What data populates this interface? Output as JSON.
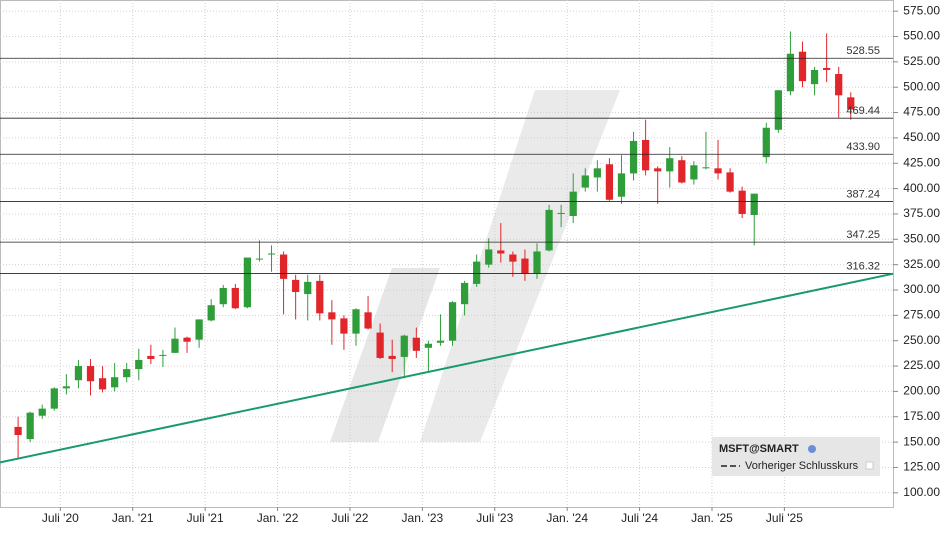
{
  "chart_data": {
    "type": "candlestick",
    "x": [
      "2020-03",
      "2020-04",
      "2020-05",
      "2020-06",
      "2020-07",
      "2020-08",
      "2020-09",
      "2020-10",
      "2020-11",
      "2020-12",
      "2021-01",
      "2021-02",
      "2021-03",
      "2021-04",
      "2021-05",
      "2021-06",
      "2021-07",
      "2021-08",
      "2021-09",
      "2021-10",
      "2021-11",
      "2021-12",
      "2022-01",
      "2022-02",
      "2022-03",
      "2022-04",
      "2022-05",
      "2022-06",
      "2022-07",
      "2022-08",
      "2022-09",
      "2022-10",
      "2022-11",
      "2022-12",
      "2023-01",
      "2023-02",
      "2023-03",
      "2023-04",
      "2023-05",
      "2023-06",
      "2023-07",
      "2023-08",
      "2023-09",
      "2023-10",
      "2023-11",
      "2023-12",
      "2024-01",
      "2024-02",
      "2024-03",
      "2024-04",
      "2024-05",
      "2024-06",
      "2024-07",
      "2024-08",
      "2024-09",
      "2024-10",
      "2024-11",
      "2024-12",
      "2025-01",
      "2025-02",
      "2025-03",
      "2025-04",
      "2025-05",
      "2025-06",
      "2025-07",
      "2025-08",
      "2025-09",
      "2025-10",
      "2025-11",
      "2025-12"
    ],
    "open": [
      165,
      153,
      176,
      183,
      203,
      211,
      225,
      213,
      204,
      214,
      222,
      235,
      235,
      238,
      253,
      251,
      270,
      286,
      302,
      283,
      331,
      335,
      335,
      310,
      296,
      309,
      278,
      272,
      257,
      278,
      258,
      235,
      234,
      253,
      243,
      248,
      250,
      286,
      306,
      325,
      339,
      335,
      331,
      316,
      339,
      376,
      373,
      401,
      411,
      424,
      392,
      415,
      448,
      420,
      417,
      428,
      409,
      421,
      420,
      416,
      398,
      374,
      431,
      458,
      496,
      535,
      503,
      519,
      513,
      490
    ],
    "high": [
      175,
      180,
      187,
      204,
      217,
      231,
      232,
      225,
      228,
      228,
      242,
      246,
      241,
      263,
      254,
      271,
      291,
      305,
      306,
      332,
      349,
      344,
      338,
      315,
      315,
      315,
      290,
      275,
      282,
      294,
      267,
      251,
      256,
      263,
      250,
      276,
      289,
      309,
      335,
      351,
      366,
      338,
      340,
      346,
      384,
      384,
      415,
      420,
      428,
      430,
      433,
      456,
      468,
      422,
      441,
      432,
      427,
      456,
      448,
      420,
      402,
      395,
      465,
      497,
      555,
      545,
      520,
      553,
      520,
      495
    ],
    "low": [
      133,
      150,
      173,
      181,
      197,
      203,
      196,
      199,
      200,
      209,
      211,
      227,
      224,
      238,
      238,
      243,
      269,
      283,
      281,
      282,
      328,
      318,
      276,
      271,
      270,
      270,
      246,
      241,
      245,
      261,
      232,
      219,
      213,
      233,
      220,
      245,
      245,
      275,
      303,
      322,
      327,
      313,
      309,
      311,
      338,
      362,
      366,
      397,
      397,
      388,
      385,
      408,
      413,
      385,
      401,
      405,
      404,
      419,
      409,
      396,
      371,
      344,
      425,
      455,
      492,
      500,
      492,
      505,
      470,
      468
    ],
    "close": [
      157,
      179,
      183,
      203,
      205,
      225,
      210,
      202,
      214,
      222,
      231,
      232,
      236,
      252,
      249,
      271,
      285,
      302,
      282,
      332,
      331,
      336,
      311,
      298,
      308,
      277,
      271,
      257,
      281,
      262,
      233,
      232,
      255,
      240,
      247,
      250,
      288,
      307,
      328,
      340,
      336,
      328,
      316,
      338,
      379,
      376,
      397,
      413,
      420,
      389,
      415,
      447,
      418,
      417,
      430,
      406,
      423,
      421,
      415,
      397,
      375,
      395,
      460,
      497,
      533,
      506,
      517,
      517,
      492,
      478
    ],
    "up_color": "#2f9e3a",
    "down_color": "#e0262a",
    "xlim": [
      "2020-02",
      "2026-04"
    ],
    "xticks": [
      {
        "value": "2020-07",
        "label": "Juli '20"
      },
      {
        "value": "2021-01",
        "label": "Jan. '21"
      },
      {
        "value": "2021-07",
        "label": "Juli '21"
      },
      {
        "value": "2022-01",
        "label": "Jan. '22"
      },
      {
        "value": "2022-07",
        "label": "Juli '22"
      },
      {
        "value": "2023-01",
        "label": "Jan. '23"
      },
      {
        "value": "2023-07",
        "label": "Juli '23"
      },
      {
        "value": "2024-01",
        "label": "Jan. '24"
      },
      {
        "value": "2024-07",
        "label": "Juli '24"
      },
      {
        "value": "2025-01",
        "label": "Jan. '25"
      },
      {
        "value": "2025-07",
        "label": "Juli '25"
      }
    ],
    "ylim": [
      86,
      586
    ],
    "yticks": [
      {
        "value": 100,
        "label": "100.00"
      },
      {
        "value": 125,
        "label": "125.00"
      },
      {
        "value": 150,
        "label": "150.00"
      },
      {
        "value": 175,
        "label": "175.00"
      },
      {
        "value": 200,
        "label": "200.00"
      },
      {
        "value": 225,
        "label": "225.00"
      },
      {
        "value": 250,
        "label": "250.00"
      },
      {
        "value": 275,
        "label": "275.00"
      },
      {
        "value": 300,
        "label": "300.00"
      },
      {
        "value": 325,
        "label": "325.00"
      },
      {
        "value": 350,
        "label": "350.00"
      },
      {
        "value": 375,
        "label": "375.00"
      },
      {
        "value": 400,
        "label": "400.00"
      },
      {
        "value": 425,
        "label": "425.00"
      },
      {
        "value": 450,
        "label": "450.00"
      },
      {
        "value": 475,
        "label": "475.00"
      },
      {
        "value": 500,
        "label": "500.00"
      },
      {
        "value": 525,
        "label": "525.00"
      },
      {
        "value": 550,
        "label": "550.00"
      },
      {
        "value": 575,
        "label": "575.00"
      }
    ],
    "grid": true,
    "levels": [
      {
        "value": 528.55,
        "label": "528.55"
      },
      {
        "value": 469.44,
        "label": "469.44"
      },
      {
        "value": 433.9,
        "label": "433.90"
      },
      {
        "value": 387.24,
        "label": "387.24"
      },
      {
        "value": 347.25,
        "label": "347.25"
      },
      {
        "value": 316.32,
        "label": "316.32"
      }
    ],
    "trendline": {
      "color": "#1a9a6c",
      "from": {
        "x": "2020-02",
        "value": 130
      },
      "to": {
        "x": "2026-04",
        "value": 316
      }
    },
    "legend": {
      "title": "MSFT@SMART",
      "items": [
        "Vorheriger Schlusskurs"
      ]
    }
  }
}
